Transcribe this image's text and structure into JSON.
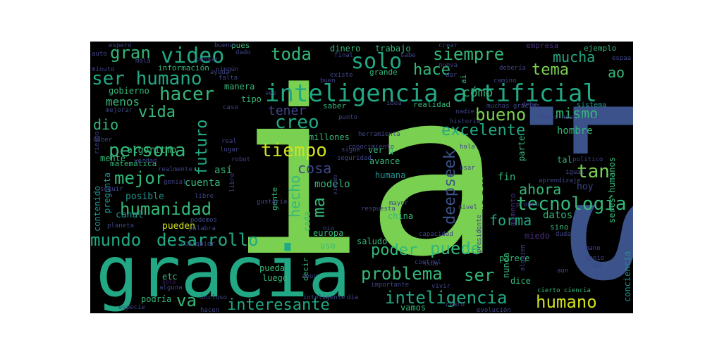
{
  "palette": {
    "background": "#000000",
    "page": "#ffffff",
    "bright_green": "#7ad151",
    "teal_green": "#22a884",
    "teal": "#2a9d8f",
    "blue": "#3b528b",
    "navy": "#404688",
    "purple": "#472d7b",
    "dark_purple": "#482173",
    "yellow": "#d0e11c",
    "cyan": "#21918c",
    "light_green": "#35b779"
  },
  "words": [
    {
      "text": "ia"
    },
    {
      "text": "si"
    },
    {
      "text": "gracia"
    },
    {
      "text": "inteligencia artificial"
    },
    {
      "text": "video"
    },
    {
      "text": "ser humano"
    },
    {
      "text": "hacer"
    },
    {
      "text": "solo"
    },
    {
      "text": "toda"
    },
    {
      "text": "siempre"
    },
    {
      "text": "gran"
    },
    {
      "text": "hace"
    },
    {
      "text": "tema"
    },
    {
      "text": "mucha"
    },
    {
      "text": "ao"
    },
    {
      "text": "cómo"
    },
    {
      "text": "mismo"
    },
    {
      "text": "bueno"
    },
    {
      "text": "excelente"
    },
    {
      "text": "persona"
    },
    {
      "text": "tiempo"
    },
    {
      "text": "vida"
    },
    {
      "text": "futuro"
    },
    {
      "text": "creo"
    },
    {
      "text": "tener"
    },
    {
      "text": "menos"
    },
    {
      "text": "dio"
    },
    {
      "text": "mejor"
    },
    {
      "text": "cosa"
    },
    {
      "text": "humanidad"
    },
    {
      "text": "deepseek"
    },
    {
      "text": "tan"
    },
    {
      "text": "tecnología"
    },
    {
      "text": "ahora"
    },
    {
      "text": "bien"
    },
    {
      "text": "ma"
    },
    {
      "text": "mundo"
    },
    {
      "text": "desarrollo"
    },
    {
      "text": "poder"
    },
    {
      "text": "puede"
    },
    {
      "text": "forma"
    },
    {
      "text": "problema"
    },
    {
      "text": "ser"
    },
    {
      "text": "va"
    },
    {
      "text": "interesante"
    },
    {
      "text": "inteligencia"
    },
    {
      "text": "humano"
    },
    {
      "text": "algoritmo"
    },
    {
      "text": "hecho"
    },
    {
      "text": "modelo"
    },
    {
      "text": "así"
    },
    {
      "text": "cuenta"
    },
    {
      "text": "posible"
    },
    {
      "text": "canal"
    },
    {
      "text": "pueden"
    },
    {
      "text": "datos"
    },
    {
      "text": "hoy"
    },
    {
      "text": "fin"
    },
    {
      "text": "hombre"
    },
    {
      "text": "tal"
    },
    {
      "text": "dinero"
    },
    {
      "text": "trabajo"
    },
    {
      "text": "información"
    },
    {
      "text": "gobierno"
    },
    {
      "text": "europa"
    },
    {
      "text": "uso"
    },
    {
      "text": "saludo"
    },
    {
      "text": "parece"
    },
    {
      "text": "dice"
    },
    {
      "text": "vamos"
    },
    {
      "text": "luego"
    },
    {
      "text": "pueda"
    },
    {
      "text": "decir"
    },
    {
      "text": "etc"
    },
    {
      "text": "podría"
    },
    {
      "text": "contenido"
    },
    {
      "text": "pregunta"
    },
    {
      "text": "mente"
    },
    {
      "text": "matemática"
    },
    {
      "text": "empresa"
    },
    {
      "text": "ejemplo"
    },
    {
      "text": "manera"
    },
    {
      "text": "tipo"
    },
    {
      "text": "saber"
    },
    {
      "text": "realidad"
    },
    {
      "text": "millones"
    },
    {
      "text": "avance"
    },
    {
      "text": "ver q"
    },
    {
      "text": "gente"
    },
    {
      "text": "cada"
    },
    {
      "text": "humana"
    },
    {
      "text": "china"
    },
    {
      "text": "parte"
    },
    {
      "text": "momento"
    },
    {
      "text": "nunca"
    },
    {
      "text": "seres humanos"
    },
    {
      "text": "conciencia"
    },
    {
      "text": "miedo"
    },
    {
      "text": "sino"
    },
    {
      "text": "grande"
    },
    {
      "text": "pues"
    },
    {
      "text": "sistema"
    },
    {
      "text": "redes neuronales"
    },
    {
      "text": "historia"
    },
    {
      "text": "muchas gracias"
    },
    {
      "text": "cierto ciencia"
    },
    {
      "text": "evolución"
    },
    {
      "text": "verdad"
    },
    {
      "text": "robot"
    },
    {
      "text": "seguridad"
    },
    {
      "text": "herramienta"
    },
    {
      "text": "conocimiento"
    },
    {
      "text": "aprendizaje"
    },
    {
      "text": "político"
    },
    {
      "text": "igual"
    },
    {
      "text": "pronto"
    },
    {
      "text": "respuesta"
    },
    {
      "text": "mayor"
    },
    {
      "text": "capacidad"
    },
    {
      "text": "vivir"
    },
    {
      "text": "importante"
    },
    {
      "text": "inteligente"
    },
    {
      "text": "alguien"
    },
    {
      "text": "presidente"
    },
    {
      "text": "nivel"
    },
    {
      "text": "nadie"
    },
    {
      "text": "caso"
    },
    {
      "text": "lugar"
    },
    {
      "text": "real"
    },
    {
      "text": "mejorar"
    },
    {
      "text": "genial"
    },
    {
      "text": "realmente"
    },
    {
      "text": "especie"
    },
    {
      "text": "hacen"
    },
    {
      "text": "incluso"
    },
    {
      "text": "alguna"
    },
    {
      "text": "solo"
    },
    {
      "text": "cualquier"
    },
    {
      "text": "palabra"
    },
    {
      "text": "podemos"
    },
    {
      "text": "espero"
    },
    {
      "text": "auto"
    },
    {
      "text": "minuto"
    },
    {
      "text": "mala"
    },
    {
      "text": "pensar"
    },
    {
      "text": "buena"
    },
    {
      "text": "dado"
    },
    {
      "text": "ningún"
    },
    {
      "text": "falta"
    },
    {
      "text": "crear"
    },
    {
      "text": "sabe"
    },
    {
      "text": "final"
    },
    {
      "text": "nueva"
    },
    {
      "text": "buen"
    },
    {
      "text": "existe"
    },
    {
      "text": "dar"
    },
    {
      "text": "camino"
    },
    {
      "text": "debería"
    },
    {
      "text": "espaa"
    },
    {
      "text": "idea"
    },
    {
      "text": "punto"
    },
    {
      "text": "debe"
    },
    {
      "text": "hola"
    },
    {
      "text": "usar"
    },
    {
      "text": "sigue"
    },
    {
      "text": "haber"
    },
    {
      "text": "riesgo"
    },
    {
      "text": "libro"
    },
    {
      "text": "seguir"
    },
    {
      "text": "ayuda"
    },
    {
      "text": "libre"
    },
    {
      "text": "gustaría"
    },
    {
      "text": "planeta"
    },
    {
      "text": "control"
    },
    {
      "text": "sido"
    },
    {
      "text": "nio"
    },
    {
      "text": "seor"
    },
    {
      "text": "día"
    },
    {
      "text": "claro"
    },
    {
      "text": "mano"
    },
    {
      "text": "genio"
    },
    {
      "text": "agi"
    },
    {
      "text": "aún"
    },
    {
      "text": "duda"
    },
    {
      "text": "ai"
    },
    {
      "text": "vez"
    },
    {
      "text": "viendo"
    },
    {
      "text": "espaa"
    }
  ]
}
